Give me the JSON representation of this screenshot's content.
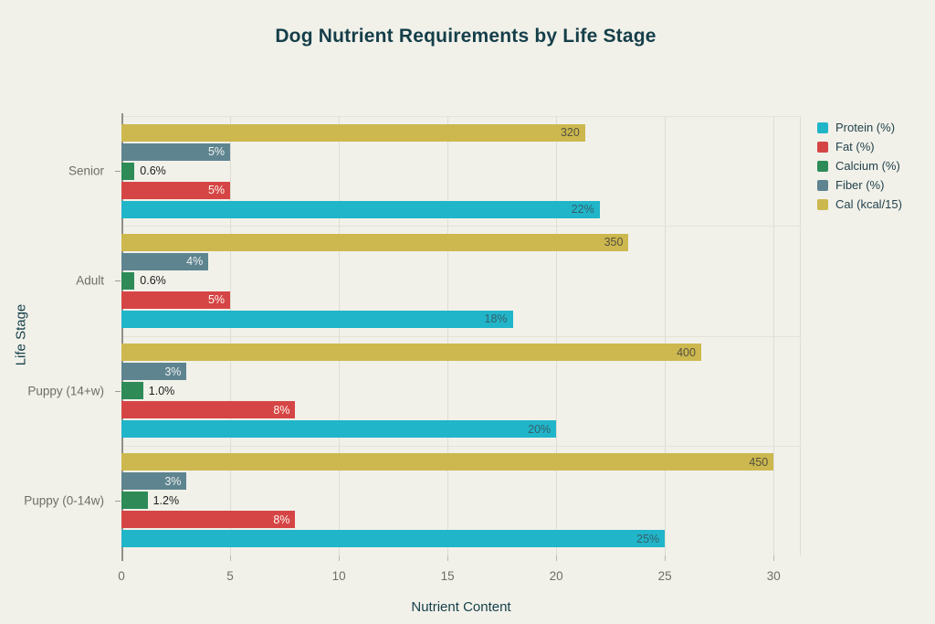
{
  "page": {
    "background_color": "#f1f1ea"
  },
  "chart_data": {
    "type": "bar",
    "orientation": "horizontal",
    "title": "Dog Nutrient Requirements by Life Stage",
    "title_color": "#153e49",
    "xlabel": "Nutrient Content",
    "ylabel": "Life Stage",
    "categories": [
      "Senior",
      "Adult",
      "Puppy (14+w)",
      "Puppy (0-14w)"
    ],
    "categories_order": "top-to-bottom",
    "xticks": [
      0,
      5,
      10,
      15,
      20,
      25,
      30
    ],
    "xlim": [
      0,
      31.25
    ],
    "grid": true,
    "legend_position": "top-right",
    "bar_order_within_group": "reverse of legend order (Cal on top, Protein at bottom)",
    "series": [
      {
        "name": "Protein (%)",
        "color": "#21b5c9",
        "label_color": "#35606a",
        "label_position": "inside",
        "values": [
          22,
          18,
          20,
          25
        ],
        "labels": [
          "22%",
          "18%",
          "20%",
          "25%"
        ]
      },
      {
        "name": "Fat (%)",
        "color": "#d64545",
        "label_color": "#fdf6f1",
        "label_position": "inside",
        "values": [
          5,
          5,
          8,
          8
        ],
        "labels": [
          "5%",
          "5%",
          "8%",
          "8%"
        ]
      },
      {
        "name": "Calcium (%)",
        "color": "#2e8b57",
        "label_color": "#1c1c1c",
        "label_position": "outside",
        "values": [
          0.6,
          0.6,
          1.0,
          1.2
        ],
        "labels": [
          "0.6%",
          "0.6%",
          "1.0%",
          "1.2%"
        ]
      },
      {
        "name": "Fiber (%)",
        "color": "#5e8490",
        "label_color": "#f0f2f0",
        "label_position": "inside",
        "values": [
          5,
          4,
          3,
          3
        ],
        "labels": [
          "5%",
          "4%",
          "3%",
          "3%"
        ]
      },
      {
        "name": "Cal (kcal/15)",
        "color": "#ccb84e",
        "label_color": "#55503f",
        "label_position": "inside",
        "values": [
          21.33,
          23.33,
          26.67,
          30
        ],
        "raw_values": [
          320,
          350,
          400,
          450
        ],
        "labels": [
          "320",
          "350",
          "400",
          "450"
        ]
      }
    ]
  }
}
